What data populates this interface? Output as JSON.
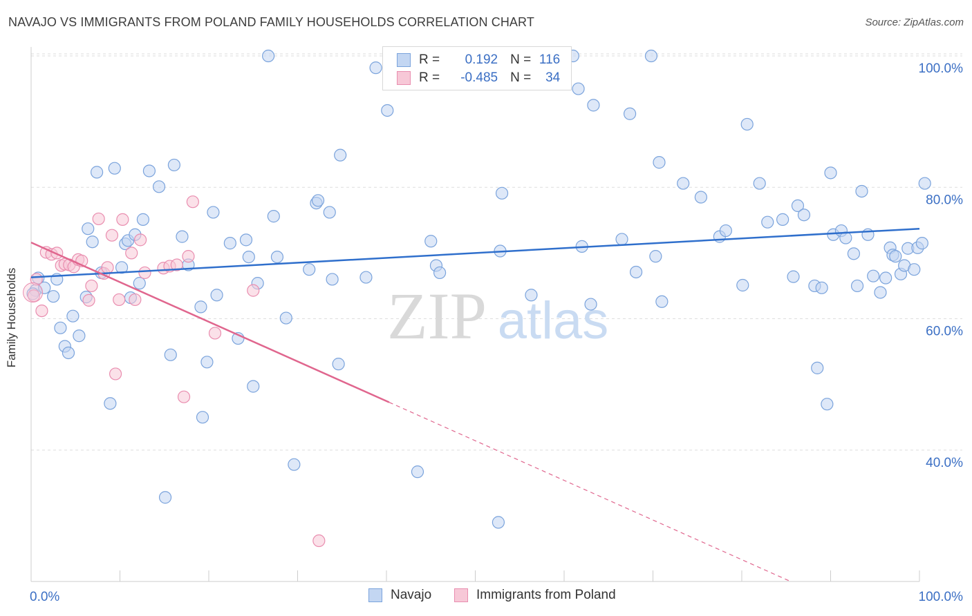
{
  "title": "NAVAJO VS IMMIGRANTS FROM POLAND FAMILY HOUSEHOLDS CORRELATION CHART",
  "source": "Source: ZipAtlas.com",
  "watermark": {
    "zip": "ZIP",
    "atlas": "atlas"
  },
  "legend": {
    "rows": [
      {
        "r_label": "R =",
        "r_value": "0.192",
        "n_label": "N =",
        "n_value": "116",
        "color": "#6fa0e0"
      },
      {
        "r_label": "R =",
        "r_value": "-0.485",
        "n_label": "N =",
        "n_value": "34",
        "color": "#ec8fb0"
      }
    ]
  },
  "colors": {
    "navajo_fill": "#c3d6f2",
    "navajo_stroke": "#7aa3dc",
    "navajo_line": "#2f6fcc",
    "poland_fill": "#f7c8d7",
    "poland_stroke": "#e98daf",
    "poland_line": "#e0668e",
    "axis_text": "#3b6fc4",
    "grid": "#dddddd"
  },
  "chart_data": {
    "type": "scatter",
    "title": "NAVAJO VS IMMIGRANTS FROM POLAND FAMILY HOUSEHOLDS CORRELATION CHART",
    "xlabel": "",
    "ylabel": "Family Households",
    "xlim": [
      0,
      100
    ],
    "ylim": [
      20,
      102
    ],
    "x_tick_labels": [
      "0.0%",
      "100.0%"
    ],
    "y_ticks": [
      40,
      60,
      80,
      100
    ],
    "y_tick_labels": [
      "40.0%",
      "60.0%",
      "80.0%",
      "100.0%"
    ],
    "grid": true,
    "legend_position": "bottom",
    "series": [
      {
        "name": "Navajo",
        "R": 0.192,
        "N": 116,
        "trend": {
          "x": [
            0,
            100
          ],
          "y": [
            66.3,
            73.7
          ],
          "dashed_from": null
        },
        "points": [
          [
            0.5,
            64.3
          ],
          [
            0.8,
            66.2
          ],
          [
            1.5,
            64.7
          ],
          [
            2.5,
            63.4
          ],
          [
            2.9,
            66.0
          ],
          [
            3.3,
            58.6
          ],
          [
            3.8,
            55.8
          ],
          [
            4.2,
            54.8
          ],
          [
            4.7,
            60.4
          ],
          [
            5.4,
            57.4
          ],
          [
            6.2,
            63.3
          ],
          [
            6.4,
            73.7
          ],
          [
            6.9,
            71.7
          ],
          [
            7.4,
            82.3
          ],
          [
            7.9,
            67.0
          ],
          [
            8.9,
            47.1
          ],
          [
            9.4,
            82.9
          ],
          [
            10.2,
            67.8
          ],
          [
            10.6,
            71.4
          ],
          [
            10.9,
            71.9
          ],
          [
            11.2,
            63.2
          ],
          [
            11.7,
            72.8
          ],
          [
            12.2,
            65.4
          ],
          [
            12.6,
            75.1
          ],
          [
            13.3,
            82.5
          ],
          [
            14.4,
            80.1
          ],
          [
            15.1,
            32.8
          ],
          [
            15.7,
            54.5
          ],
          [
            16.1,
            83.4
          ],
          [
            17.0,
            72.5
          ],
          [
            17.7,
            68.2
          ],
          [
            19.1,
            61.8
          ],
          [
            19.3,
            45.0
          ],
          [
            19.8,
            53.4
          ],
          [
            20.5,
            76.2
          ],
          [
            20.9,
            63.6
          ],
          [
            22.4,
            71.5
          ],
          [
            23.3,
            57.0
          ],
          [
            24.2,
            72.0
          ],
          [
            24.5,
            69.4
          ],
          [
            25.0,
            49.7
          ],
          [
            25.5,
            65.4
          ],
          [
            26.7,
            100.0
          ],
          [
            27.3,
            75.6
          ],
          [
            27.7,
            69.4
          ],
          [
            28.7,
            60.1
          ],
          [
            29.6,
            37.8
          ],
          [
            31.3,
            67.5
          ],
          [
            32.1,
            77.6
          ],
          [
            32.3,
            78.0
          ],
          [
            33.6,
            76.2
          ],
          [
            33.9,
            66.0
          ],
          [
            34.8,
            84.9
          ],
          [
            34.6,
            53.1
          ],
          [
            37.7,
            66.3
          ],
          [
            38.8,
            98.2
          ],
          [
            40.1,
            91.7
          ],
          [
            40.6,
            100.0
          ],
          [
            43.5,
            36.7
          ],
          [
            45.0,
            71.8
          ],
          [
            45.6,
            68.1
          ],
          [
            46.0,
            67.0
          ],
          [
            52.6,
            29.0
          ],
          [
            52.8,
            70.3
          ],
          [
            53.0,
            79.1
          ],
          [
            56.3,
            63.6
          ],
          [
            61.0,
            100.0
          ],
          [
            61.6,
            95.0
          ],
          [
            62.0,
            71.0
          ],
          [
            63.0,
            62.2
          ],
          [
            63.3,
            92.5
          ],
          [
            66.5,
            72.1
          ],
          [
            67.4,
            91.2
          ],
          [
            68.1,
            67.1
          ],
          [
            69.8,
            100.0
          ],
          [
            70.3,
            69.5
          ],
          [
            70.7,
            83.8
          ],
          [
            71.0,
            62.6
          ],
          [
            73.4,
            80.6
          ],
          [
            75.4,
            78.5
          ],
          [
            77.5,
            72.5
          ],
          [
            78.2,
            73.4
          ],
          [
            80.1,
            65.1
          ],
          [
            80.6,
            89.6
          ],
          [
            82.0,
            80.6
          ],
          [
            82.9,
            74.7
          ],
          [
            84.6,
            75.1
          ],
          [
            85.8,
            66.4
          ],
          [
            86.3,
            77.2
          ],
          [
            87.0,
            75.8
          ],
          [
            88.2,
            65.0
          ],
          [
            88.5,
            52.5
          ],
          [
            89.0,
            64.7
          ],
          [
            89.6,
            47.0
          ],
          [
            90.0,
            82.2
          ],
          [
            90.3,
            72.8
          ],
          [
            91.2,
            73.4
          ],
          [
            91.7,
            72.3
          ],
          [
            92.6,
            69.9
          ],
          [
            93.0,
            65.0
          ],
          [
            93.5,
            79.4
          ],
          [
            94.2,
            72.8
          ],
          [
            94.8,
            66.5
          ],
          [
            95.6,
            64.0
          ],
          [
            96.2,
            66.2
          ],
          [
            96.7,
            70.8
          ],
          [
            97.0,
            69.7
          ],
          [
            97.3,
            69.5
          ],
          [
            97.9,
            66.8
          ],
          [
            98.3,
            68.1
          ],
          [
            98.7,
            70.7
          ],
          [
            99.4,
            67.5
          ],
          [
            99.8,
            70.8
          ],
          [
            100.3,
            71.5
          ],
          [
            100.6,
            80.6
          ],
          [
            0.2,
            63.8
          ]
        ]
      },
      {
        "name": "Immigrants from Poland",
        "R": -0.485,
        "N": 34,
        "trend": {
          "x": [
            0,
            85.5
          ],
          "y": [
            71.6,
            20.0
          ],
          "dashed_from": 40.3
        },
        "points": [
          [
            0.3,
            63.5
          ],
          [
            0.6,
            66.0
          ],
          [
            1.2,
            61.2
          ],
          [
            1.7,
            70.1
          ],
          [
            2.3,
            69.8
          ],
          [
            2.9,
            70.0
          ],
          [
            3.4,
            68.1
          ],
          [
            3.8,
            68.3
          ],
          [
            4.3,
            68.2
          ],
          [
            4.8,
            67.9
          ],
          [
            5.3,
            69.0
          ],
          [
            5.7,
            68.8
          ],
          [
            6.5,
            62.8
          ],
          [
            6.8,
            65.0
          ],
          [
            7.6,
            75.2
          ],
          [
            8.2,
            66.9
          ],
          [
            8.6,
            67.8
          ],
          [
            9.1,
            72.7
          ],
          [
            9.5,
            51.6
          ],
          [
            9.9,
            62.9
          ],
          [
            10.3,
            75.1
          ],
          [
            11.3,
            70.0
          ],
          [
            11.7,
            62.9
          ],
          [
            12.3,
            72.0
          ],
          [
            12.8,
            67.0
          ],
          [
            14.9,
            67.7
          ],
          [
            15.6,
            68.0
          ],
          [
            16.4,
            68.2
          ],
          [
            17.2,
            48.1
          ],
          [
            17.7,
            69.5
          ],
          [
            18.2,
            77.8
          ],
          [
            20.7,
            57.8
          ],
          [
            25.0,
            64.3
          ],
          [
            32.4,
            26.2
          ]
        ]
      }
    ]
  }
}
